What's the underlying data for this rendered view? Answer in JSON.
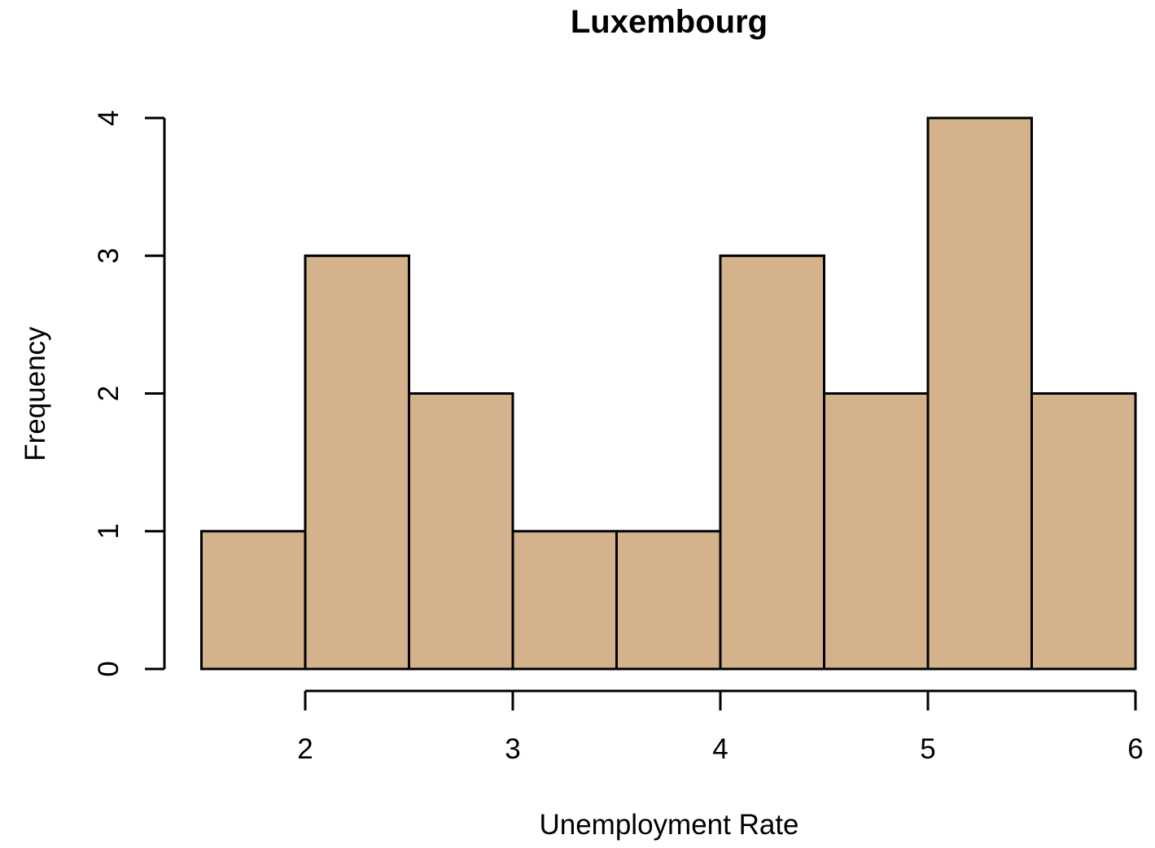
{
  "chart_data": {
    "type": "bar",
    "title": "Luxembourg",
    "xlabel": "Unemployment Rate",
    "ylabel": "Frequency",
    "bin_edges": [
      1.5,
      2.0,
      2.5,
      3.0,
      3.5,
      4.0,
      4.5,
      5.0,
      5.5,
      6.0
    ],
    "values": [
      1,
      3,
      2,
      1,
      1,
      3,
      2,
      4,
      2
    ],
    "x_ticks": [
      2,
      3,
      4,
      5,
      6
    ],
    "y_ticks": [
      0,
      1,
      2,
      3,
      4
    ],
    "xlim": [
      1.5,
      6.0
    ],
    "ylim": [
      0,
      4
    ],
    "bar_color": "#D4B38C",
    "grid": false,
    "legend": "none"
  }
}
